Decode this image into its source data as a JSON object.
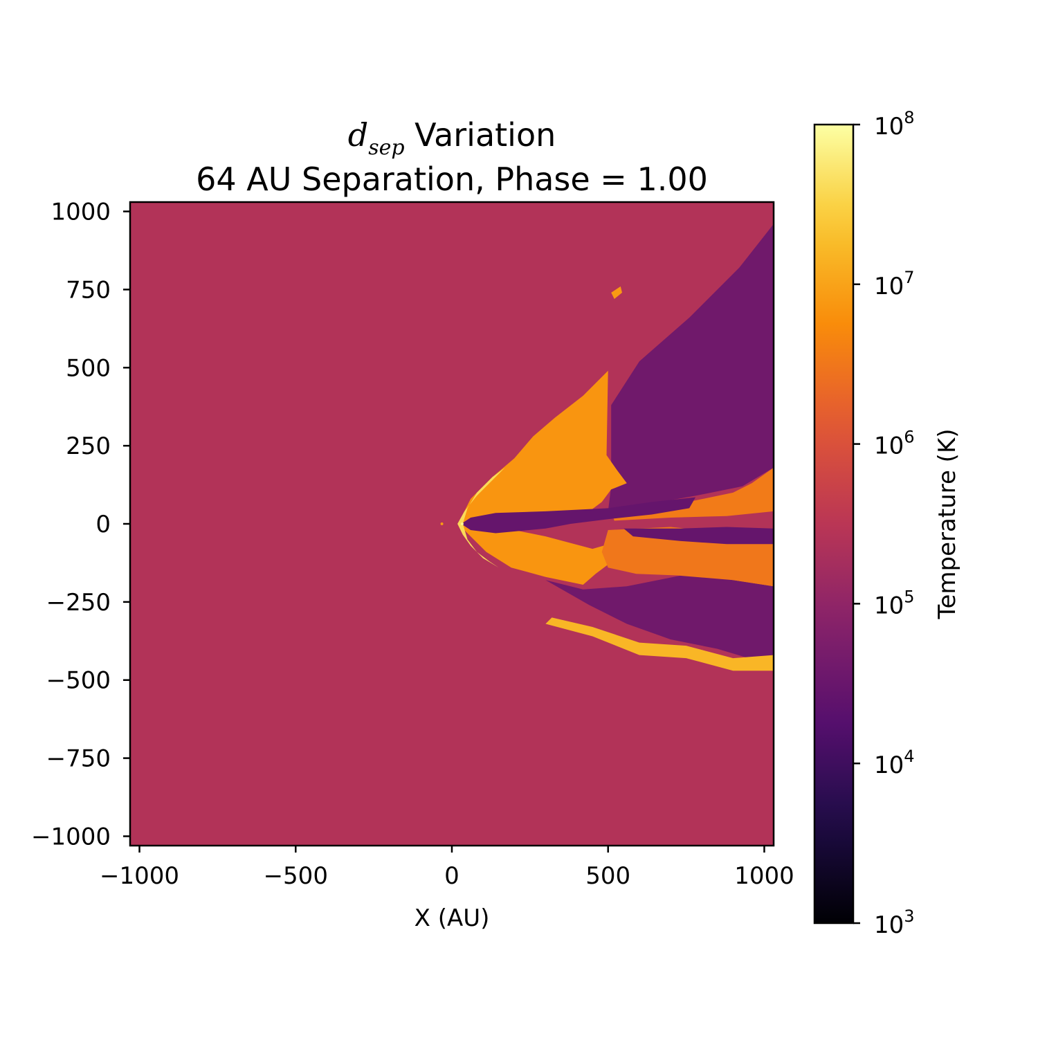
{
  "title": {
    "symbol": "d",
    "symbol_subscript": "sep",
    "line1_rest": " Variation",
    "line2": "64 AU Separation, Phase = 1.00"
  },
  "chart_data": {
    "type": "heatmap",
    "xlabel": "X (AU)",
    "ylabel": "",
    "xlim": [
      -1030,
      1030
    ],
    "ylim": [
      -1030,
      1030
    ],
    "xticks": [
      {
        "value": -1000,
        "label": "−1000"
      },
      {
        "value": -500,
        "label": "−500"
      },
      {
        "value": 0,
        "label": "0"
      },
      {
        "value": 500,
        "label": "500"
      },
      {
        "value": 1000,
        "label": "1000"
      }
    ],
    "yticks": [
      {
        "value": 1000,
        "label": "1000"
      },
      {
        "value": 750,
        "label": "750"
      },
      {
        "value": 500,
        "label": "500"
      },
      {
        "value": 250,
        "label": "250"
      },
      {
        "value": 0,
        "label": "0"
      },
      {
        "value": -250,
        "label": "−250"
      },
      {
        "value": -500,
        "label": "−500"
      },
      {
        "value": -750,
        "label": "−750"
      },
      {
        "value": -1000,
        "label": "−1000"
      }
    ],
    "colorbar": {
      "label": "Temperature (K)",
      "scale": "log",
      "range": [
        1000,
        100000000
      ],
      "colormap": "inferno",
      "ticks": [
        {
          "exp": 3,
          "base": "10",
          "sup": "3"
        },
        {
          "exp": 4,
          "base": "10",
          "sup": "4"
        },
        {
          "exp": 5,
          "base": "10",
          "sup": "5"
        },
        {
          "exp": 6,
          "base": "10",
          "sup": "6"
        },
        {
          "exp": 7,
          "base": "10",
          "sup": "7"
        },
        {
          "exp": 8,
          "base": "10",
          "sup": "8"
        }
      ]
    },
    "background_log_temperature": 5.4,
    "regions": [
      {
        "name": "cool-upper-wake",
        "logT": 4.6,
        "poly": [
          [
            1030,
            1030
          ],
          [
            1030,
            180
          ],
          [
            930,
            120
          ],
          [
            780,
            90
          ],
          [
            610,
            60
          ],
          [
            500,
            40
          ],
          [
            510,
            120
          ],
          [
            510,
            380
          ],
          [
            600,
            520
          ],
          [
            760,
            660
          ],
          [
            920,
            820
          ],
          [
            1030,
            960
          ]
        ]
      },
      {
        "name": "cool-lower-wake",
        "logT": 4.6,
        "poly": [
          [
            1030,
            -180
          ],
          [
            1030,
            -470
          ],
          [
            950,
            -430
          ],
          [
            850,
            -400
          ],
          [
            700,
            -370
          ],
          [
            560,
            -320
          ],
          [
            440,
            -260
          ],
          [
            300,
            -180
          ],
          [
            420,
            -210
          ],
          [
            560,
            -200
          ],
          [
            760,
            -160
          ],
          [
            900,
            -170
          ]
        ]
      },
      {
        "name": "hot-shocked-shell",
        "logT": 6.85,
        "poly": [
          [
            20,
            0
          ],
          [
            60,
            80
          ],
          [
            130,
            150
          ],
          [
            200,
            210
          ],
          [
            260,
            280
          ],
          [
            330,
            340
          ],
          [
            420,
            410
          ],
          [
            460,
            450
          ],
          [
            500,
            490
          ],
          [
            495,
            220
          ],
          [
            530,
            170
          ],
          [
            560,
            130
          ],
          [
            510,
            110
          ],
          [
            480,
            70
          ],
          [
            440,
            40
          ],
          [
            300,
            20
          ],
          [
            150,
            10
          ],
          [
            150,
            -10
          ],
          [
            300,
            -40
          ],
          [
            450,
            -80
          ],
          [
            520,
            -60
          ],
          [
            700,
            -30
          ],
          [
            850,
            -20
          ],
          [
            1030,
            -30
          ],
          [
            1030,
            -200
          ],
          [
            900,
            -180
          ],
          [
            600,
            -130
          ],
          [
            530,
            -120
          ],
          [
            500,
            -130
          ],
          [
            460,
            -160
          ],
          [
            420,
            -195
          ],
          [
            300,
            -170
          ],
          [
            190,
            -140
          ],
          [
            110,
            -90
          ],
          [
            60,
            -40
          ]
        ]
      },
      {
        "name": "shocked-outflow",
        "logT": 6.5,
        "poly": [
          [
            500,
            -20
          ],
          [
            700,
            -10
          ],
          [
            850,
            -25
          ],
          [
            1030,
            -35
          ],
          [
            1030,
            -200
          ],
          [
            900,
            -180
          ],
          [
            720,
            -165
          ],
          [
            590,
            -160
          ],
          [
            500,
            -140
          ],
          [
            480,
            -90
          ]
        ]
      },
      {
        "name": "hot-outflow-upper",
        "logT": 6.55,
        "poly": [
          [
            510,
            40
          ],
          [
            650,
            55
          ],
          [
            780,
            75
          ],
          [
            900,
            100
          ],
          [
            960,
            130
          ],
          [
            1030,
            180
          ],
          [
            1030,
            40
          ],
          [
            880,
            25
          ],
          [
            700,
            20
          ],
          [
            520,
            10
          ]
        ]
      },
      {
        "name": "cold-central-tail",
        "logT": 4.45,
        "poly": [
          [
            30,
            0
          ],
          [
            60,
            20
          ],
          [
            140,
            35
          ],
          [
            300,
            40
          ],
          [
            500,
            50
          ],
          [
            640,
            70
          ],
          [
            780,
            85
          ],
          [
            760,
            50
          ],
          [
            640,
            30
          ],
          [
            500,
            15
          ],
          [
            380,
            0
          ],
          [
            300,
            -15
          ],
          [
            140,
            -30
          ],
          [
            60,
            -20
          ]
        ]
      },
      {
        "name": "cold-jet-stripe",
        "logT": 4.45,
        "poly": [
          [
            550,
            -15
          ],
          [
            730,
            -15
          ],
          [
            880,
            -10
          ],
          [
            1030,
            -15
          ],
          [
            1030,
            -65
          ],
          [
            880,
            -65
          ],
          [
            730,
            -55
          ],
          [
            580,
            -40
          ]
        ]
      },
      {
        "name": "bright-bow-shock",
        "logT": 7.6,
        "poly": [
          [
            18,
            0
          ],
          [
            40,
            40
          ],
          [
            80,
            90
          ],
          [
            130,
            140
          ],
          [
            170,
            180
          ],
          [
            130,
            150
          ],
          [
            80,
            100
          ],
          [
            50,
            50
          ],
          [
            35,
            0
          ],
          [
            50,
            -50
          ],
          [
            80,
            -90
          ],
          [
            120,
            -120
          ],
          [
            150,
            -140
          ],
          [
            100,
            -110
          ],
          [
            60,
            -70
          ],
          [
            35,
            -35
          ]
        ]
      },
      {
        "name": "lower-hot-filament",
        "logT": 7.2,
        "poly": [
          [
            300,
            -320
          ],
          [
            450,
            -360
          ],
          [
            600,
            -420
          ],
          [
            750,
            -430
          ],
          [
            900,
            -470
          ],
          [
            1030,
            -470
          ],
          [
            1030,
            -420
          ],
          [
            900,
            -430
          ],
          [
            750,
            -390
          ],
          [
            600,
            -380
          ],
          [
            450,
            -330
          ],
          [
            320,
            -300
          ]
        ]
      },
      {
        "name": "upper-hot-blob",
        "logT": 6.9,
        "poly": [
          [
            510,
            740
          ],
          [
            540,
            760
          ],
          [
            545,
            740
          ],
          [
            520,
            720
          ]
        ]
      }
    ],
    "point_sources": [
      {
        "name": "star-primary",
        "x": 33,
        "y": 0,
        "logT": 7.9
      },
      {
        "name": "star-secondary",
        "x": -32,
        "y": 0,
        "logT": 6.9
      }
    ]
  }
}
